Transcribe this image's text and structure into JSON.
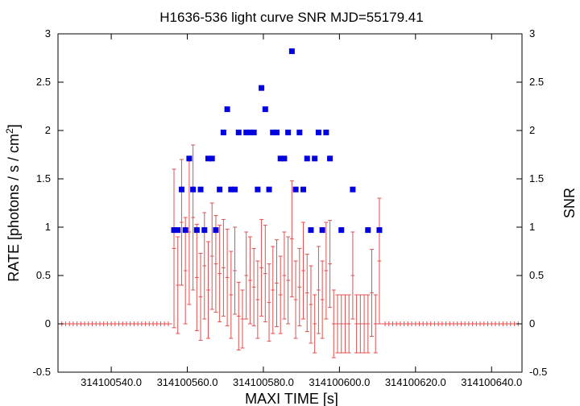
{
  "chart_data": {
    "type": "scatter",
    "title": "H1636-536 light curve  SNR MJD=55179.41",
    "xlabel": "MAXI TIME [s]",
    "ylabel_left": {
      "pre": "RATE [photons / s / cm",
      "sup": "2",
      "post": "]"
    },
    "ylabel_right": "SNR",
    "xlim": [
      314100526,
      314100648
    ],
    "ylim": [
      -0.5,
      3
    ],
    "x_ticks": [
      314100540,
      314100560,
      314100580,
      314100600,
      314100620,
      314100640
    ],
    "x_tick_labels": [
      "314100540.0",
      "314100560.0",
      "314100580.0",
      "314100600.0",
      "314100620.0",
      "314100640.0"
    ],
    "y_ticks": [
      -0.5,
      0,
      0.5,
      1,
      1.5,
      2,
      2.5,
      3
    ],
    "y_tick_labels": [
      "-0.5",
      "0",
      "0.5",
      "1",
      "1.5",
      "2",
      "2.5",
      "3"
    ],
    "grid": false,
    "colors": {
      "rate": "#e05050",
      "snr": "#0000e0",
      "axis": "#000000"
    },
    "series": [
      {
        "role": "rate",
        "style": "step-errorbars",
        "bin_width": 1,
        "x_start": 314100526,
        "x_end": 314100648,
        "zero_before": 314100556,
        "zero_after": 314100611,
        "x": [
          314100556,
          314100557,
          314100558,
          314100559,
          314100560,
          314100561,
          314100562,
          314100563,
          314100564,
          314100565,
          314100566,
          314100567,
          314100568,
          314100569,
          314100570,
          314100571,
          314100572,
          314100573,
          314100574,
          314100575,
          314100576,
          314100577,
          314100578,
          314100579,
          314100580,
          314100581,
          314100582,
          314100583,
          314100584,
          314100585,
          314100586,
          314100587,
          314100588,
          314100589,
          314100590,
          314100591,
          314100592,
          314100593,
          314100594,
          314100595,
          314100596,
          314100597,
          314100598,
          314100599,
          314100600,
          314100601,
          314100602,
          314100603,
          314100604,
          314100605,
          314100606,
          314100607,
          314100608,
          314100609,
          314100610
        ],
        "y": [
          0.78,
          0.4,
          1.05,
          0.55,
          0.95,
          1.1,
          0.48,
          0.28,
          0.6,
          0.35,
          0.7,
          0.62,
          0.52,
          0.58,
          0.48,
          0.3,
          0.55,
          0.08,
          0.05,
          0.5,
          0.45,
          0.38,
          0.25,
          0.58,
          0.52,
          0.22,
          0.35,
          0.42,
          0.3,
          0.5,
          0.45,
          0.88,
          0.25,
          0.38,
          0.55,
          0.32,
          0.2,
          0.0,
          0.35,
          0.25,
          0.55,
          0.62,
          0.0,
          0.0,
          0.0,
          0.0,
          0.0,
          0.5,
          0.0,
          0.0,
          0.0,
          0.0,
          0.32,
          0.0,
          0.65
        ],
        "yerr": [
          0.82,
          0.5,
          0.65,
          0.55,
          0.75,
          0.75,
          0.55,
          0.45,
          0.55,
          0.5,
          0.55,
          0.5,
          0.5,
          0.5,
          0.5,
          0.45,
          0.45,
          0.35,
          0.3,
          0.45,
          0.45,
          0.4,
          0.4,
          0.5,
          0.5,
          0.4,
          0.45,
          0.45,
          0.4,
          0.45,
          0.45,
          0.6,
          0.4,
          0.4,
          0.5,
          0.4,
          0.4,
          0.3,
          0.45,
          0.4,
          0.5,
          0.45,
          0.35,
          0.3,
          0.3,
          0.3,
          0.3,
          0.45,
          0.3,
          0.3,
          0.3,
          0.3,
          0.45,
          0.3,
          0.65
        ]
      },
      {
        "role": "snr",
        "style": "points",
        "x": [
          314100556.5,
          314100557.5,
          314100558.5,
          314100559.5,
          314100560.5,
          314100561.5,
          314100562.5,
          314100563.5,
          314100564.5,
          314100565.5,
          314100566.5,
          314100567.5,
          314100568.5,
          314100569.5,
          314100570.5,
          314100571.5,
          314100572.5,
          314100573.5,
          314100575.5,
          314100576.5,
          314100577.5,
          314100578.5,
          314100579.5,
          314100580.5,
          314100581.5,
          314100582.5,
          314100583.5,
          314100584.5,
          314100585.5,
          314100586.5,
          314100587.5,
          314100588.5,
          314100589.5,
          314100590.5,
          314100591.5,
          314100592.5,
          314100593.5,
          314100594.5,
          314100595.5,
          314100596.5,
          314100597.5,
          314100600.5,
          314100603.5,
          314100607.5,
          314100610.5
        ],
        "y": [
          0.97,
          0.97,
          1.39,
          0.97,
          1.71,
          1.39,
          0.97,
          1.39,
          0.97,
          1.71,
          1.71,
          0.97,
          1.39,
          1.98,
          2.22,
          1.39,
          1.39,
          1.98,
          1.98,
          1.98,
          1.98,
          1.39,
          2.44,
          2.22,
          1.39,
          1.98,
          1.98,
          1.71,
          1.71,
          1.98,
          2.82,
          1.39,
          1.98,
          1.39,
          1.71,
          0.97,
          1.71,
          1.98,
          0.97,
          1.98,
          1.71,
          0.97,
          1.39,
          0.97,
          0.97
        ]
      }
    ]
  }
}
